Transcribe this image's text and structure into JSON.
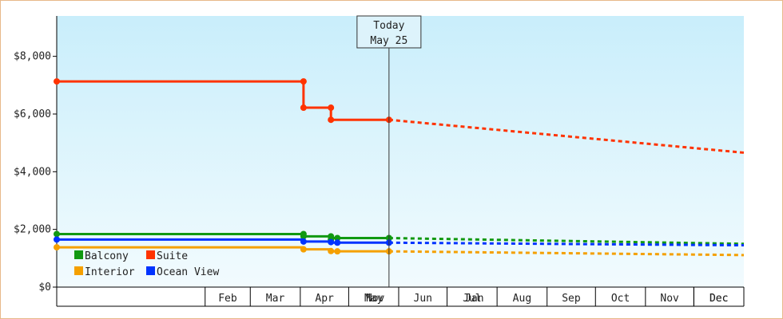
{
  "chart_data": {
    "type": "line",
    "ylabel": "",
    "xlabel": "",
    "ylim": [
      0,
      9400
    ],
    "y_ticks": [
      {
        "value": 0,
        "label": "$0"
      },
      {
        "value": 2000,
        "label": "$2,000"
      },
      {
        "value": 4000,
        "label": "$4,000"
      },
      {
        "value": 6000,
        "label": "$6,000"
      },
      {
        "value": 8000,
        "label": "$8,000"
      }
    ],
    "x_range": [
      "Oct 31",
      "Dec 31"
    ],
    "x_months": [
      {
        "label": "Nov",
        "start": "Nov 1",
        "end": "Nov 30"
      },
      {
        "label": "Dec",
        "start": "Dec 1",
        "end": "Dec 31"
      },
      {
        "label": "Jan",
        "start": "Jan 1",
        "end": "Jan 31"
      },
      {
        "label": "Feb",
        "start": "Feb 1",
        "end": "Feb 28"
      },
      {
        "label": "Mar",
        "start": "Mar 1",
        "end": "Mar 31"
      },
      {
        "label": "Apr",
        "start": "Apr 1",
        "end": "Apr 30"
      },
      {
        "label": "May",
        "start": "May 1",
        "end": "May 31"
      },
      {
        "label": "Jun",
        "start": "Jun 1",
        "end": "Jun 30"
      },
      {
        "label": "Jul",
        "start": "Jul 1",
        "end": "Jul 31"
      },
      {
        "label": "Aug",
        "start": "Aug 1",
        "end": "Aug 31"
      },
      {
        "label": "Sep",
        "start": "Sep 1",
        "end": "Sep 30"
      },
      {
        "label": "Oct",
        "start": "Oct 1",
        "end": "Oct 31"
      },
      {
        "label": "Nov",
        "start": "Nov 1",
        "end": "Nov 30"
      },
      {
        "label": "Dec",
        "start": "Dec 1",
        "end": "Dec 31"
      }
    ],
    "today": {
      "line1": "Today",
      "line2": "May 25",
      "date": "May 25"
    },
    "grid": false,
    "legend_position": "bottom-left",
    "series": [
      {
        "name": "Suite",
        "color": "#ff3300",
        "points": [
          {
            "x": "Oct 31",
            "y": 7130
          },
          {
            "x": "Apr 2",
            "y": 7130
          },
          {
            "x": "Apr 2",
            "y": 6220
          },
          {
            "x": "Apr 19",
            "y": 6220
          },
          {
            "x": "Apr 19",
            "y": 5800
          },
          {
            "x": "May 25",
            "y": 5800
          }
        ],
        "markers": [
          {
            "x": "Oct 31",
            "y": 7130
          },
          {
            "x": "Apr 2",
            "y": 7130
          },
          {
            "x": "Apr 2",
            "y": 6220
          },
          {
            "x": "Apr 19",
            "y": 6220
          },
          {
            "x": "Apr 19",
            "y": 5800
          },
          {
            "x": "May 25",
            "y": 5800
          }
        ],
        "projection": [
          {
            "x": "May 25",
            "y": 5800
          },
          {
            "x": "Dec 31",
            "y": 4660
          }
        ]
      },
      {
        "name": "Balcony",
        "color": "#119911",
        "points": [
          {
            "x": "Oct 31",
            "y": 1840
          },
          {
            "x": "Apr 2",
            "y": 1840
          },
          {
            "x": "Apr 2",
            "y": 1760
          },
          {
            "x": "Apr 19",
            "y": 1760
          },
          {
            "x": "Apr 19",
            "y": 1700
          },
          {
            "x": "May 25",
            "y": 1700
          }
        ],
        "markers": [
          {
            "x": "Oct 31",
            "y": 1840
          },
          {
            "x": "Apr 2",
            "y": 1840
          },
          {
            "x": "Apr 2",
            "y": 1760
          },
          {
            "x": "Apr 19",
            "y": 1760
          },
          {
            "x": "Apr 19",
            "y": 1650
          },
          {
            "x": "Apr 23",
            "y": 1700
          },
          {
            "x": "May 25",
            "y": 1700
          }
        ],
        "projection": [
          {
            "x": "May 25",
            "y": 1700
          },
          {
            "x": "Dec 31",
            "y": 1500
          }
        ]
      },
      {
        "name": "Ocean View",
        "color": "#0033ff",
        "points": [
          {
            "x": "Oct 31",
            "y": 1650
          },
          {
            "x": "Apr 2",
            "y": 1650
          },
          {
            "x": "Apr 2",
            "y": 1580
          },
          {
            "x": "Apr 19",
            "y": 1580
          },
          {
            "x": "Apr 19",
            "y": 1540
          },
          {
            "x": "May 25",
            "y": 1540
          }
        ],
        "markers": [
          {
            "x": "Oct 31",
            "y": 1650
          },
          {
            "x": "Apr 2",
            "y": 1580
          },
          {
            "x": "Apr 19",
            "y": 1560
          },
          {
            "x": "Apr 23",
            "y": 1540
          },
          {
            "x": "May 25",
            "y": 1540
          }
        ],
        "projection": [
          {
            "x": "May 25",
            "y": 1540
          },
          {
            "x": "Dec 31",
            "y": 1450
          }
        ]
      },
      {
        "name": "Interior",
        "color": "#f5a000",
        "points": [
          {
            "x": "Oct 31",
            "y": 1380
          },
          {
            "x": "Apr 2",
            "y": 1380
          },
          {
            "x": "Apr 2",
            "y": 1310
          },
          {
            "x": "Apr 19",
            "y": 1310
          },
          {
            "x": "Apr 19",
            "y": 1240
          },
          {
            "x": "May 25",
            "y": 1240
          }
        ],
        "markers": [
          {
            "x": "Oct 31",
            "y": 1380
          },
          {
            "x": "Apr 2",
            "y": 1310
          },
          {
            "x": "Apr 19",
            "y": 1250
          },
          {
            "x": "Apr 23",
            "y": 1240
          },
          {
            "x": "May 25",
            "y": 1240
          }
        ],
        "projection": [
          {
            "x": "May 25",
            "y": 1240
          },
          {
            "x": "Dec 31",
            "y": 1110
          }
        ]
      }
    ],
    "legend": [
      {
        "name": "Balcony",
        "color": "#119911"
      },
      {
        "name": "Suite",
        "color": "#ff3300"
      },
      {
        "name": "Interior",
        "color": "#f5a000"
      },
      {
        "name": "Ocean View",
        "color": "#0033ff"
      }
    ]
  }
}
